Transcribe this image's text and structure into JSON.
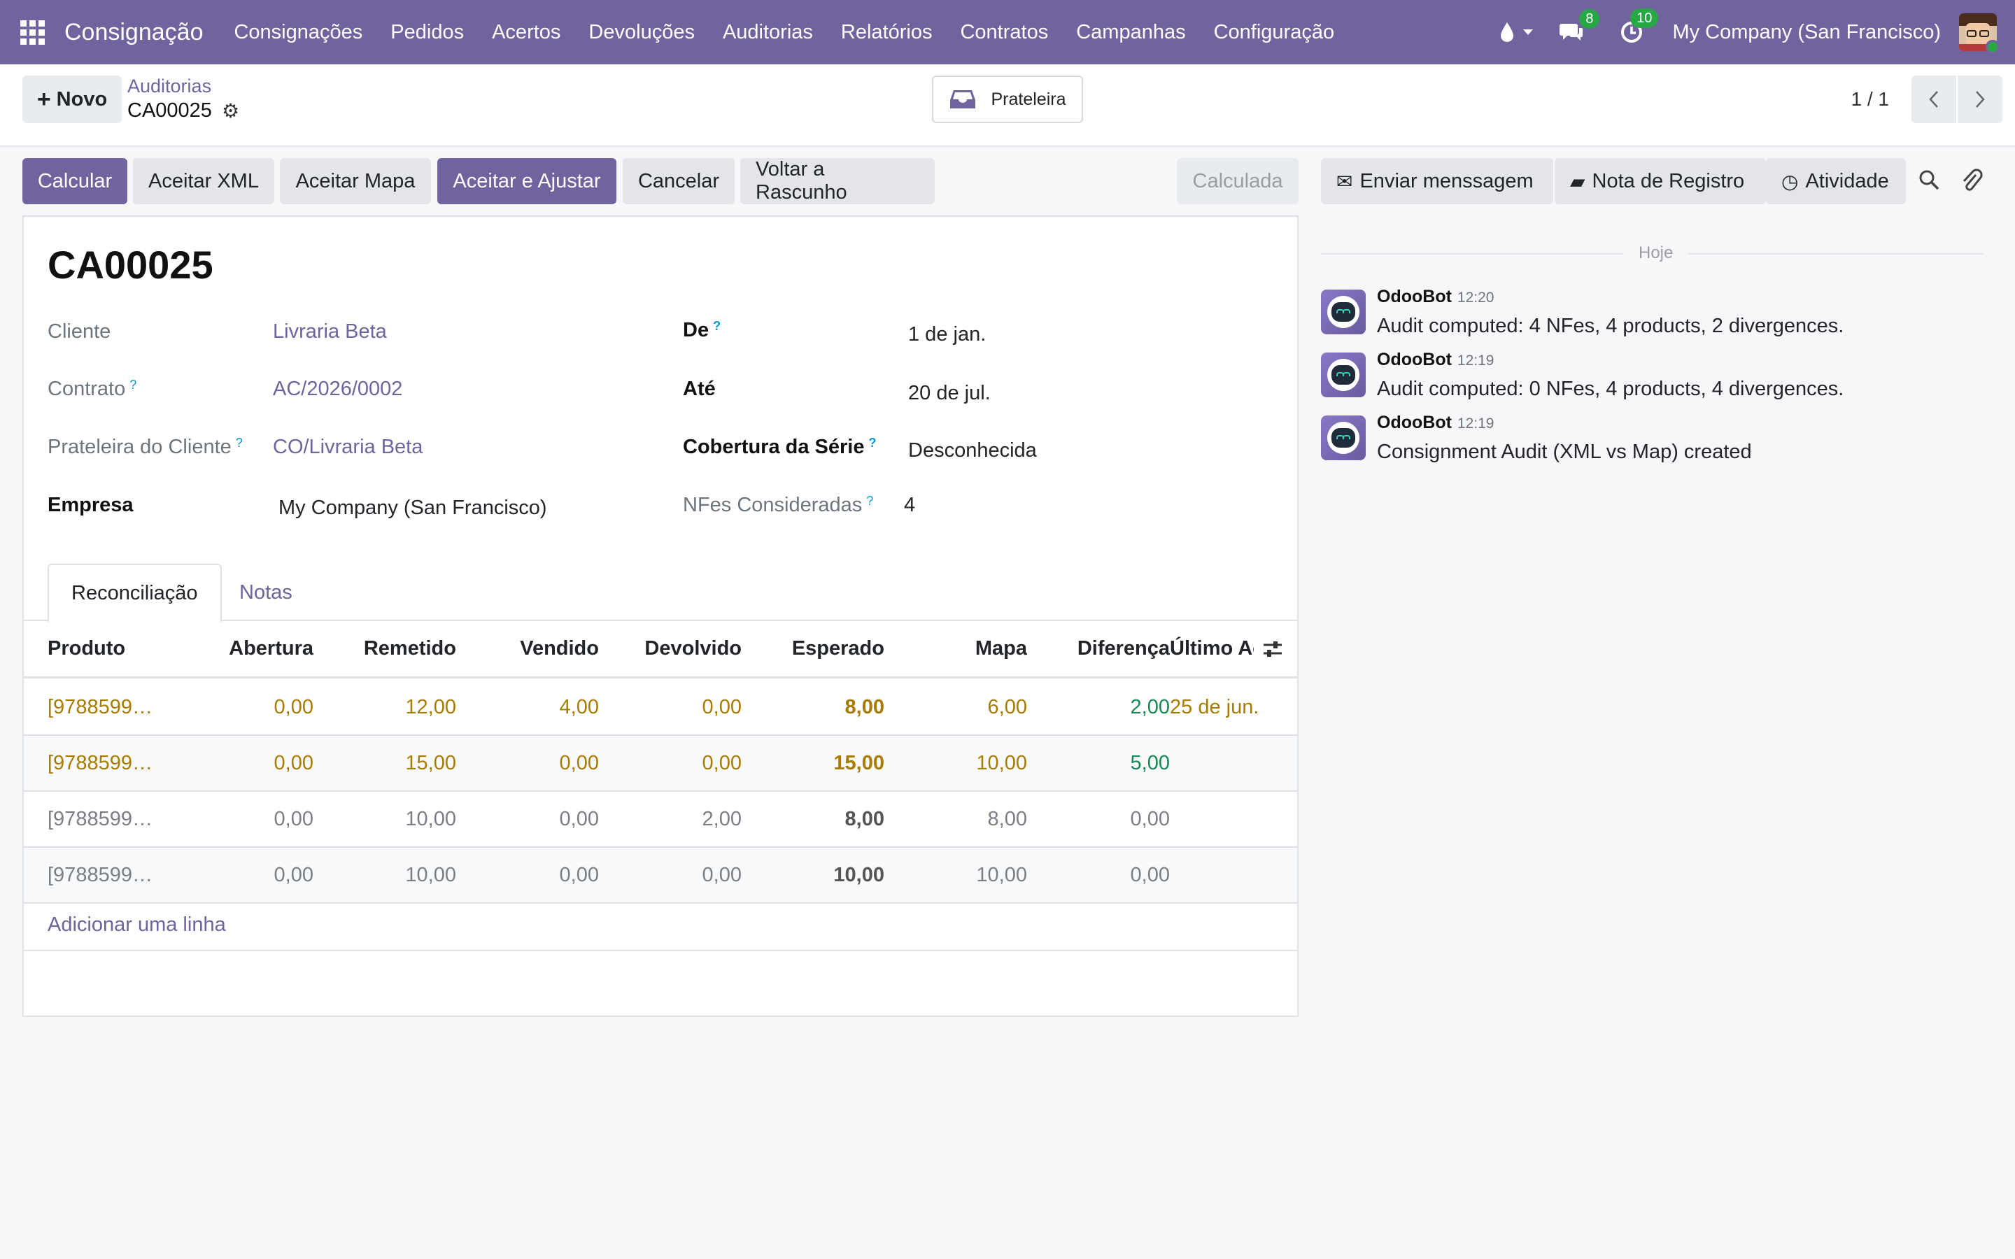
{
  "navbar": {
    "brand": "Consignação",
    "menu": [
      "Consignações",
      "Pedidos",
      "Acertos",
      "Devoluções",
      "Auditorias",
      "Relatórios",
      "Contratos",
      "Campanhas",
      "Configuração"
    ],
    "messages_badge": "8",
    "activities_badge": "10",
    "company": "My Company (San Francisco)"
  },
  "control": {
    "new_label": "Novo",
    "breadcrumb": "Auditorias",
    "record_name": "CA00025",
    "smart_button": "Prateleira",
    "pager": "1 / 1"
  },
  "actions": {
    "calcular": "Calcular",
    "aceitar_xml": "Aceitar XML",
    "aceitar_mapa": "Aceitar Mapa",
    "aceitar_ajustar": "Aceitar e Ajustar",
    "cancelar": "Cancelar",
    "voltar": "Voltar a Rascunho",
    "state": "Calculada"
  },
  "form": {
    "title": "CA00025",
    "left": [
      {
        "label": "Cliente",
        "value": "Livraria Beta"
      },
      {
        "label": "Contrato",
        "value": "AC/2026/0002"
      },
      {
        "label": "Prateleira do Cliente",
        "value": "CO/Livraria Beta"
      },
      {
        "label": "Empresa",
        "value": "My Company (San Francisco)"
      }
    ],
    "right": [
      {
        "label": "De",
        "value": "1 de jan."
      },
      {
        "label": "Até",
        "value": "20 de jul."
      },
      {
        "label": "Cobertura da Série",
        "value": "Desconhecida"
      },
      {
        "label": "NFes Consideradas",
        "value": "4"
      }
    ],
    "help_mark": "?"
  },
  "tabs": [
    "Reconciliação",
    "Notas"
  ],
  "table": {
    "headers": [
      "Produto",
      "Abertura",
      "Remetido",
      "Vendido",
      "Devolvido",
      "Esperado",
      "Mapa",
      "Diferença",
      "Último Ac"
    ],
    "rows": [
      [
        "[9788599…",
        "0,00",
        "12,00",
        "4,00",
        "0,00",
        "8,00",
        "6,00",
        "2,00",
        "25 de jun."
      ],
      [
        "[9788599…",
        "0,00",
        "15,00",
        "0,00",
        "0,00",
        "15,00",
        "10,00",
        "5,00",
        ""
      ],
      [
        "[9788599…",
        "0,00",
        "10,00",
        "0,00",
        "2,00",
        "8,00",
        "8,00",
        "0,00",
        ""
      ],
      [
        "[9788599…",
        "0,00",
        "10,00",
        "0,00",
        "0,00",
        "10,00",
        "10,00",
        "0,00",
        ""
      ]
    ],
    "add_line": "Adicionar uma linha"
  },
  "chatter": {
    "send_message": "Enviar menssagem",
    "log_note": "Nota de Registro",
    "activity": "Atividade",
    "today": "Hoje",
    "messages": [
      {
        "author": "OdooBot",
        "time": "12:20",
        "body": "Audit computed: 4 NFes, 4 products, 2 divergences."
      },
      {
        "author": "OdooBot",
        "time": "12:19",
        "body": "Audit computed: 0 NFes, 4 products, 4 divergences."
      },
      {
        "author": "OdooBot",
        "time": "12:19",
        "body": "Consignment Audit (XML vs Map) created"
      }
    ]
  },
  "colors": {
    "brand": "#71639e",
    "warning_text": "#a77c00",
    "success_text": "#198754",
    "badge_green": "#28a745"
  }
}
